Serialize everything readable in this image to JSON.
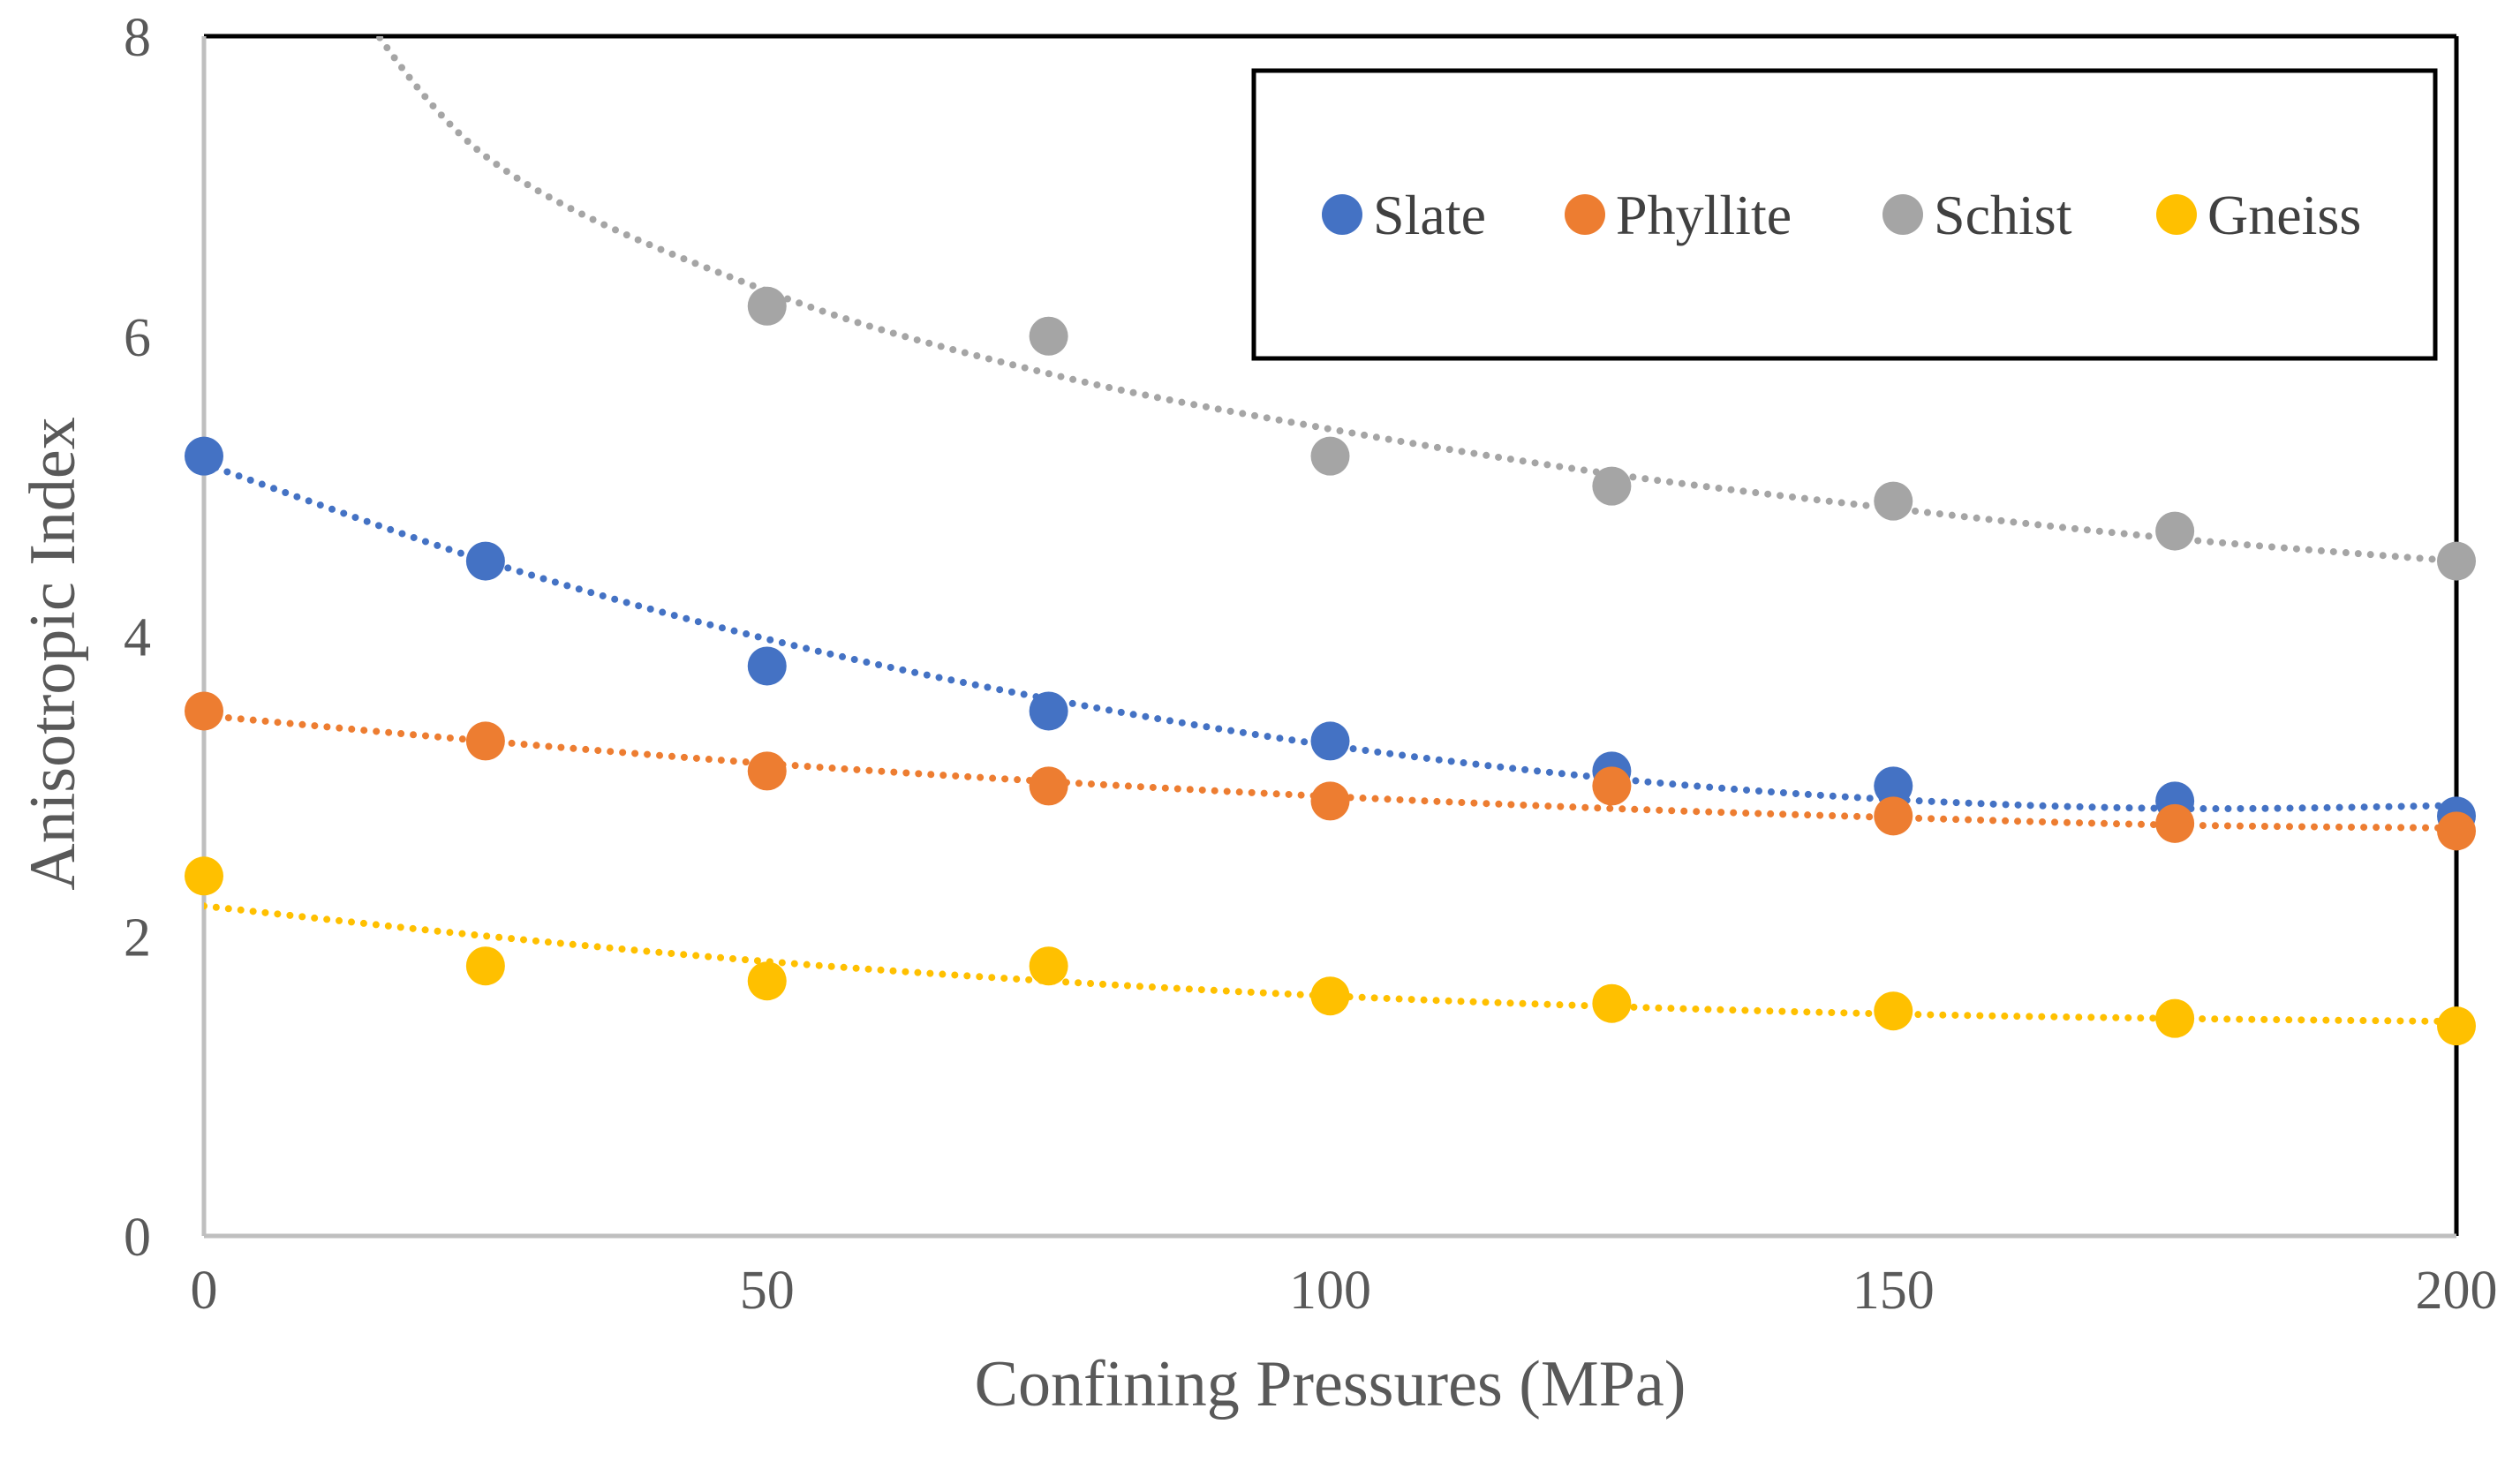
{
  "chart_data": {
    "type": "scatter",
    "title": "",
    "xlabel": "Confining Pressures (MPa)",
    "ylabel": "Anisotropic Index",
    "xlim": [
      0,
      200
    ],
    "ylim": [
      0,
      8
    ],
    "xticks": [
      0,
      50,
      100,
      150,
      200
    ],
    "yticks": [
      0,
      2,
      4,
      6,
      8
    ],
    "x": [
      0,
      25,
      50,
      75,
      100,
      125,
      150,
      175,
      200
    ],
    "legend_position": "top-right",
    "trendline": "dotted",
    "series": [
      {
        "name": "Slate",
        "color": "#4472C4",
        "values": [
          5.2,
          4.5,
          3.8,
          3.5,
          3.3,
          3.1,
          3.0,
          2.9,
          2.8
        ],
        "trend": [
          5.15,
          4.5,
          3.98,
          3.58,
          3.27,
          3.05,
          2.91,
          2.85,
          2.87
        ]
      },
      {
        "name": "Phyllite",
        "color": "#ED7D31",
        "values": [
          3.5,
          3.3,
          3.1,
          3.0,
          2.9,
          3.0,
          2.8,
          2.75,
          2.7
        ],
        "trend": [
          3.47,
          3.3,
          3.15,
          3.03,
          2.93,
          2.85,
          2.79,
          2.74,
          2.72
        ]
      },
      {
        "name": "Schist",
        "color": "#A5A5A5",
        "values": [
          null,
          null,
          6.2,
          6.0,
          5.2,
          5.0,
          4.9,
          4.7,
          4.5
        ],
        "trend": [
          null,
          7.2,
          6.3,
          5.75,
          5.38,
          5.08,
          4.85,
          4.65,
          4.5
        ]
      },
      {
        "name": "Gneiss",
        "color": "#FFC000",
        "values": [
          2.4,
          1.8,
          1.7,
          1.8,
          1.6,
          1.55,
          1.5,
          1.45,
          1.4
        ],
        "trend": [
          2.2,
          2.0,
          1.83,
          1.7,
          1.6,
          1.53,
          1.48,
          1.45,
          1.43
        ]
      }
    ]
  }
}
